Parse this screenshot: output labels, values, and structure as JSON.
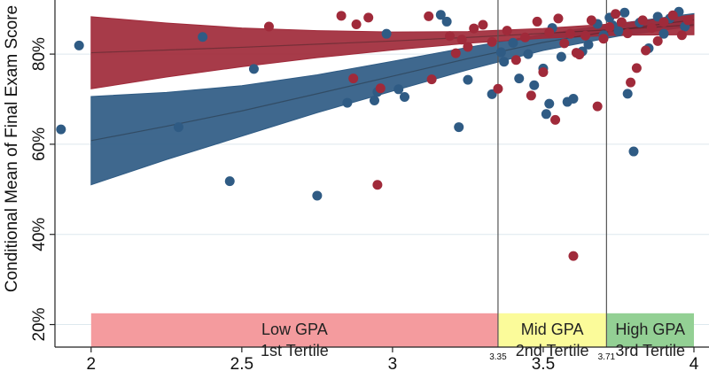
{
  "chart_data": {
    "type": "scatter",
    "title": "",
    "xlabel": "",
    "ylabel": "Conditional Mean of Final Exam Score",
    "xlim": [
      1.88,
      4.05
    ],
    "ylim": [
      15,
      92
    ],
    "x_ticks": [
      2,
      2.5,
      3,
      3.5,
      4
    ],
    "x_tick_labels": [
      "2",
      "2.5",
      "3",
      "3.5",
      "4"
    ],
    "y_ticks": [
      20,
      40,
      60,
      80
    ],
    "y_tick_labels": [
      "20%",
      "40%",
      "60%",
      "80%"
    ],
    "grid": true,
    "cutoffs": [
      {
        "x": 3.35,
        "label": "3.35"
      },
      {
        "x": 3.71,
        "label": "3.71"
      }
    ],
    "tertiles": [
      {
        "x0": 2.0,
        "x1": 3.35,
        "line1": "Low GPA",
        "line2": "1st Tertile",
        "color": "#f49b9e"
      },
      {
        "x0": 3.35,
        "x1": 3.71,
        "line1": "Mid GPA",
        "line2": "2nd Tertile",
        "color": "#fbfb9a"
      },
      {
        "x0": 3.71,
        "x1": 4.0,
        "line1": "High GPA",
        "line2": "3rd Tertile",
        "color": "#93d094"
      }
    ],
    "series": [
      {
        "color": "#2f5b84",
        "fit_x": [
          2.0,
          2.25,
          2.5,
          2.75,
          3.0,
          3.25,
          3.5,
          3.75,
          4.0
        ],
        "fit": [
          60.8,
          64.0,
          67.4,
          71.2,
          75.1,
          79.0,
          82.6,
          85.4,
          87.6
        ],
        "ci_low": [
          51.0,
          56.6,
          61.8,
          67.0,
          71.8,
          76.5,
          80.8,
          84.0,
          86.2
        ],
        "ci_high": [
          70.6,
          71.5,
          73.0,
          75.4,
          78.4,
          81.5,
          84.4,
          86.8,
          89.0
        ],
        "points": [
          [
            1.9,
            63.3
          ],
          [
            1.96,
            81.9
          ],
          [
            2.29,
            63.8
          ],
          [
            2.37,
            83.8
          ],
          [
            2.46,
            51.8
          ],
          [
            2.54,
            76.7
          ],
          [
            2.75,
            48.6
          ],
          [
            2.85,
            69.2
          ],
          [
            2.94,
            69.7
          ],
          [
            2.95,
            71.6
          ],
          [
            2.98,
            84.5
          ],
          [
            3.02,
            72.2
          ],
          [
            3.04,
            70.5
          ],
          [
            3.16,
            88.7
          ],
          [
            3.18,
            87.2
          ],
          [
            3.22,
            63.8
          ],
          [
            3.25,
            74.3
          ],
          [
            3.33,
            71.1
          ],
          [
            3.36,
            80.4
          ],
          [
            3.37,
            78.3
          ],
          [
            3.4,
            82.5
          ],
          [
            3.42,
            74.6
          ],
          [
            3.45,
            80.0
          ],
          [
            3.47,
            73.1
          ],
          [
            3.5,
            76.8
          ],
          [
            3.51,
            66.7
          ],
          [
            3.52,
            69.0
          ],
          [
            3.53,
            85.8
          ],
          [
            3.56,
            79.4
          ],
          [
            3.58,
            69.4
          ],
          [
            3.6,
            70.1
          ],
          [
            3.63,
            80.6
          ],
          [
            3.65,
            82.1
          ],
          [
            3.68,
            86.7
          ],
          [
            3.7,
            84.2
          ],
          [
            3.72,
            88.1
          ],
          [
            3.73,
            86.4
          ],
          [
            3.75,
            85.1
          ],
          [
            3.77,
            89.2
          ],
          [
            3.78,
            71.2
          ],
          [
            3.8,
            58.4
          ],
          [
            3.82,
            87.0
          ],
          [
            3.85,
            81.3
          ],
          [
            3.88,
            88.3
          ],
          [
            3.9,
            84.5
          ],
          [
            3.92,
            87.9
          ],
          [
            3.95,
            89.4
          ],
          [
            3.97,
            86.1
          ]
        ]
      },
      {
        "color": "#a02a3a",
        "fit_x": [
          2.0,
          2.25,
          2.5,
          2.75,
          3.0,
          3.25,
          3.5,
          3.75,
          4.0
        ],
        "fit": [
          80.3,
          80.9,
          81.5,
          82.2,
          82.9,
          83.7,
          84.6,
          85.5,
          86.5
        ],
        "ci_low": [
          72.3,
          74.9,
          77.2,
          79.2,
          80.9,
          82.4,
          83.5,
          84.2,
          84.3
        ],
        "ci_high": [
          88.3,
          86.9,
          85.8,
          85.2,
          84.9,
          85.0,
          85.7,
          86.8,
          88.7
        ],
        "points": [
          [
            2.59,
            86.1
          ],
          [
            2.83,
            88.5
          ],
          [
            2.87,
            74.6
          ],
          [
            2.88,
            86.6
          ],
          [
            2.92,
            88.1
          ],
          [
            2.95,
            51.0
          ],
          [
            2.96,
            72.4
          ],
          [
            3.12,
            88.4
          ],
          [
            3.13,
            74.4
          ],
          [
            3.19,
            84.0
          ],
          [
            3.21,
            80.2
          ],
          [
            3.23,
            83.2
          ],
          [
            3.25,
            81.6
          ],
          [
            3.27,
            85.7
          ],
          [
            3.3,
            86.5
          ],
          [
            3.33,
            82.7
          ],
          [
            3.35,
            72.3
          ],
          [
            3.38,
            85.2
          ],
          [
            3.41,
            78.7
          ],
          [
            3.44,
            83.7
          ],
          [
            3.46,
            70.8
          ],
          [
            3.48,
            87.2
          ],
          [
            3.5,
            76.0
          ],
          [
            3.52,
            84.8
          ],
          [
            3.54,
            65.4
          ],
          [
            3.55,
            87.9
          ],
          [
            3.57,
            82.4
          ],
          [
            3.59,
            84.5
          ],
          [
            3.6,
            35.2
          ],
          [
            3.61,
            80.3
          ],
          [
            3.62,
            79.9
          ],
          [
            3.64,
            84.1
          ],
          [
            3.66,
            87.5
          ],
          [
            3.68,
            68.4
          ],
          [
            3.7,
            83.4
          ],
          [
            3.72,
            86.0
          ],
          [
            3.74,
            88.9
          ],
          [
            3.76,
            87.1
          ],
          [
            3.78,
            84.6
          ],
          [
            3.79,
            73.7
          ],
          [
            3.81,
            76.9
          ],
          [
            3.83,
            87.5
          ],
          [
            3.84,
            80.8
          ],
          [
            3.86,
            85.8
          ],
          [
            3.88,
            82.9
          ],
          [
            3.9,
            87.1
          ],
          [
            3.93,
            88.6
          ],
          [
            3.96,
            84.2
          ],
          [
            3.98,
            87.5
          ]
        ]
      }
    ]
  }
}
